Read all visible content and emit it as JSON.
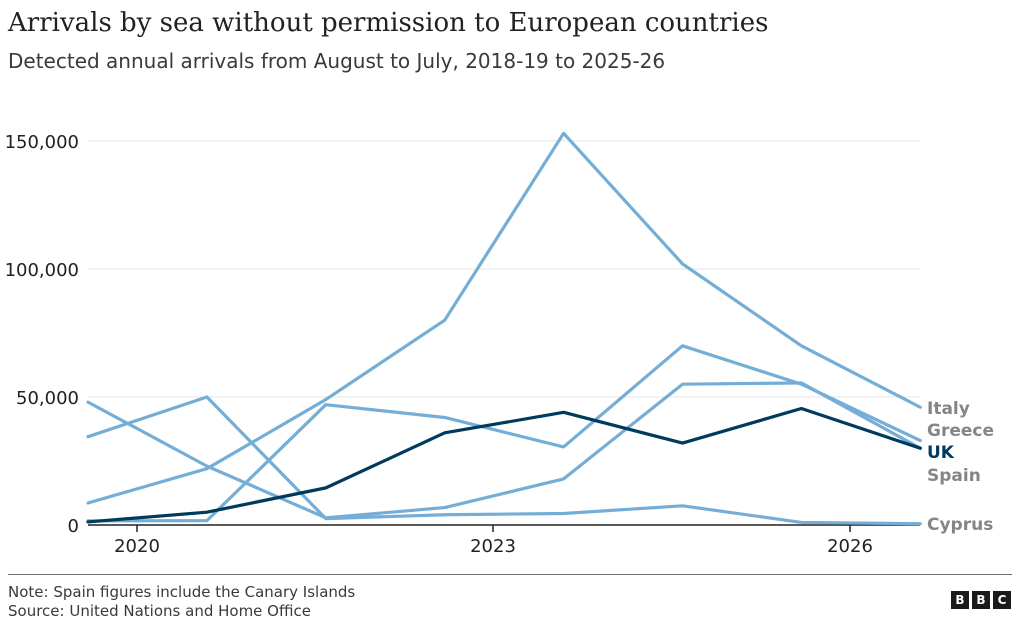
{
  "title": "Arrivals by sea without permission to European countries",
  "subtitle": "Detected annual arrivals from August to July, 2018-19 to 2025-26",
  "note": "Note: Spain figures include the Canary Islands",
  "source": "Source: United Nations and Home Office",
  "logo": [
    "B",
    "B",
    "C"
  ],
  "colors": {
    "highlight": "#003a5c",
    "other": "#74aed6",
    "grid": "#e6e6e6",
    "axis": "#222222",
    "label_grey": "#858585"
  },
  "chart_data": {
    "type": "line",
    "x": [
      "2018-19",
      "2019-20",
      "2020-21",
      "2021-22",
      "2022-23",
      "2023-24",
      "2024-25",
      "2025-26"
    ],
    "xticks": [
      "2020",
      "2023",
      "2026"
    ],
    "yticks": [
      "0",
      "50,000",
      "100,000",
      "150,000"
    ],
    "ylim": [
      0,
      160000
    ],
    "grid": true,
    "series": [
      {
        "name": "Italy",
        "highlight": false,
        "values": [
          8600,
          22000,
          49000,
          80000,
          153000,
          102000,
          70000,
          46000
        ]
      },
      {
        "name": "Greece",
        "highlight": false,
        "values": [
          48000,
          23000,
          2800,
          6800,
          18000,
          55000,
          55500,
          30000
        ]
      },
      {
        "name": "UK",
        "highlight": true,
        "values": [
          1200,
          5000,
          14500,
          36000,
          44000,
          32000,
          45500,
          30000
        ]
      },
      {
        "name": "Spain",
        "highlight": false,
        "values": [
          34500,
          50000,
          2500,
          4000,
          4500,
          7500,
          1000,
          500
        ]
      },
      {
        "name": "Cyprus",
        "highlight": false,
        "values": [
          1600,
          1700,
          47000,
          42000,
          30500,
          70000,
          55000,
          33000
        ]
      }
    ],
    "end_labels": [
      "Italy",
      "Greece",
      "UK",
      "Spain",
      "Cyprus"
    ]
  }
}
